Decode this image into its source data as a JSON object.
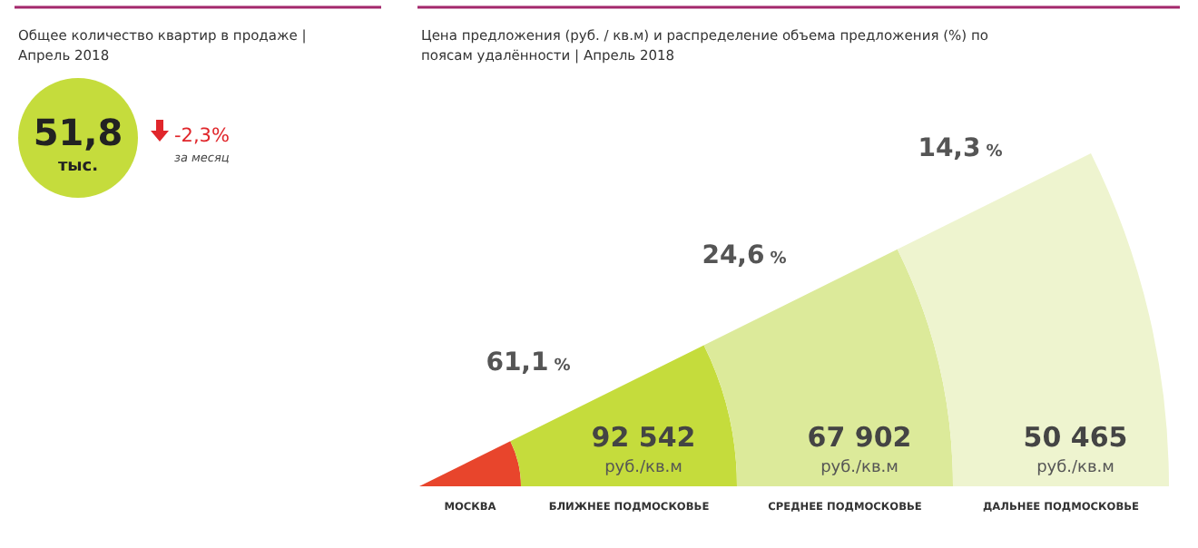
{
  "chart_data": [
    {
      "type": "other",
      "title": "Общее количество квартир в продаже | Апрель 2018",
      "annotations": [
        "51,8 тыс.",
        "-2,3%",
        "за месяц"
      ]
    },
    {
      "type": "other",
      "title": "Цена предложения (руб. / кв.м) и распределение объема предложения (%) по поясам удалённости | Апрель 2018",
      "categories": [
        "МОСКВА",
        "БЛИЖНЕЕ ПОДМОСКОВЬЕ",
        "СРЕДНЕЕ ПОДМОСКОВЬЕ",
        "ДАЛЬНЕЕ ПОДМОСКОВЬЕ"
      ],
      "annotations": [
        "%",
        "руб./кв.м"
      ],
      "data_labels": true,
      "series": [
        {
          "values": [
            null,
            61.1,
            24.6,
            14.3
          ],
          "value_labels": [
            null,
            "61,1",
            "24,6",
            "14,3"
          ]
        },
        {
          "colors": [
            "#e8452c",
            "#c5dc3c",
            "#dcea9a",
            "#eef4cf"
          ],
          "values": [
            null,
            92542,
            67902,
            50465
          ]
        }
      ]
    }
  ]
}
